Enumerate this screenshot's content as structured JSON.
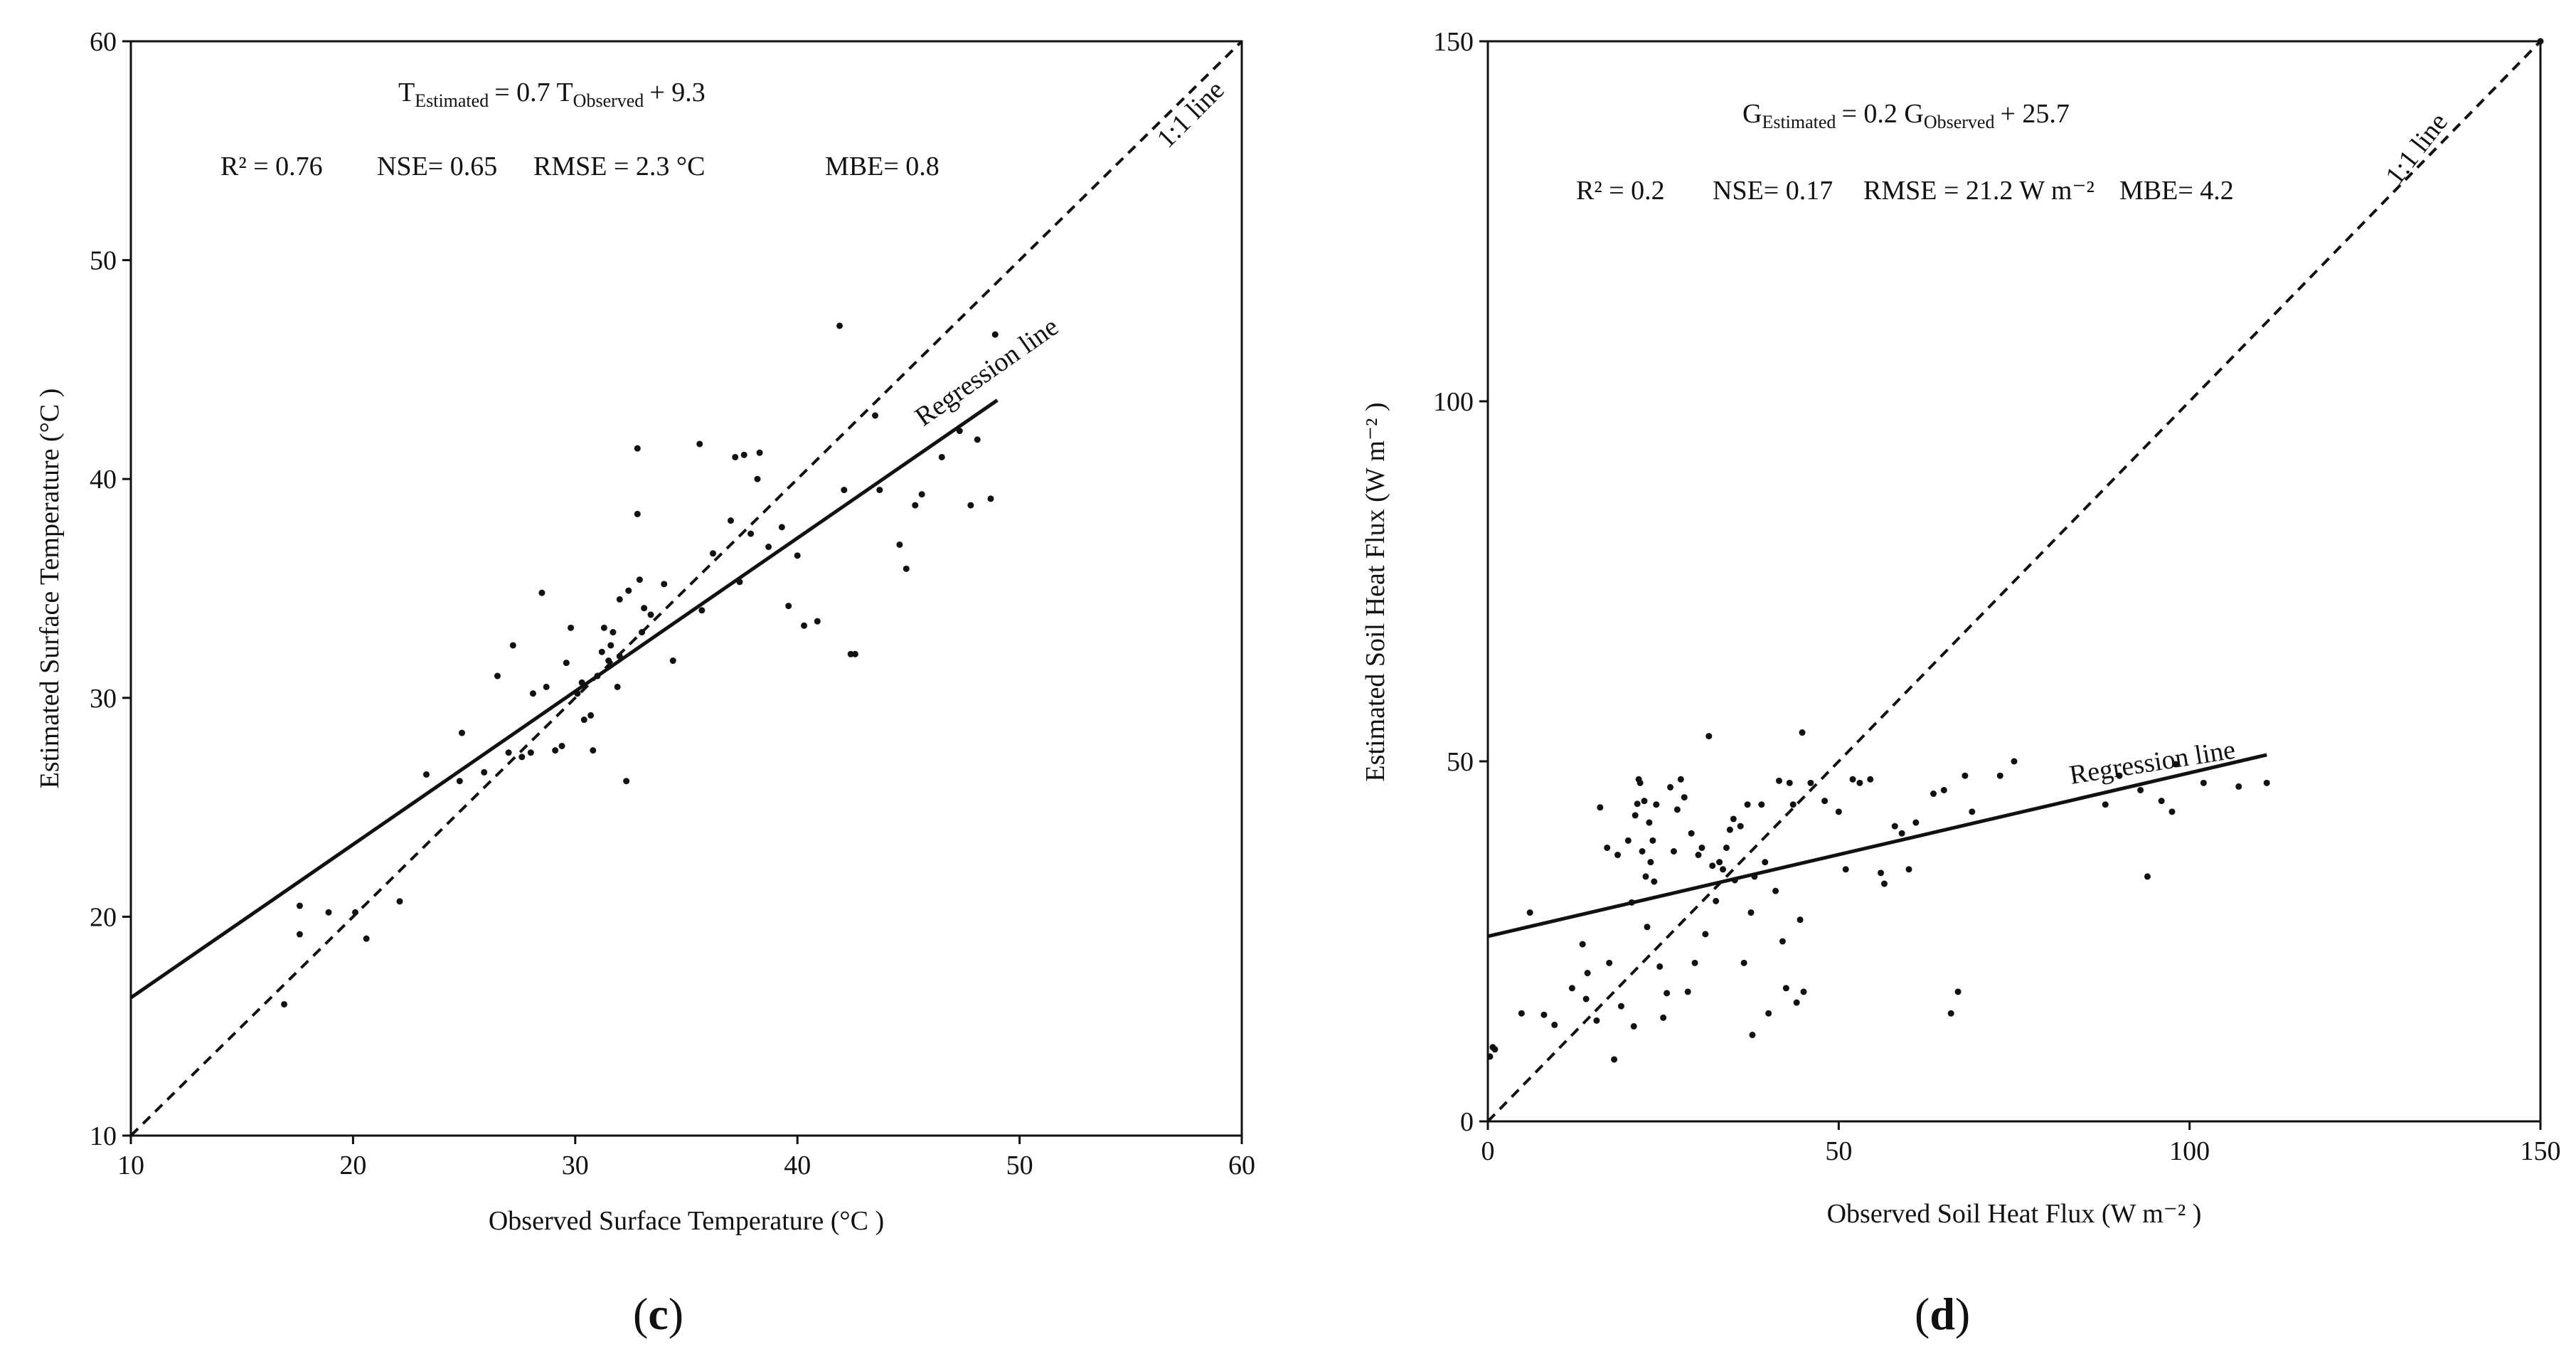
{
  "chart_data": [
    {
      "panel": "c",
      "panel_label_open": "(",
      "panel_label_letter": "c",
      "panel_label_close": ")",
      "type": "scatter",
      "xlabel": "Observed Surface Temperature (°C )",
      "ylabel": "Estimated Surface Temperature (°C )",
      "xlim": [
        10,
        60
      ],
      "ylim": [
        10,
        60
      ],
      "xticks": [
        10,
        20,
        30,
        40,
        50,
        60
      ],
      "yticks": [
        10,
        20,
        30,
        40,
        50,
        60
      ],
      "equation": {
        "lhs": "T",
        "lhs_sub": "Estimated",
        "mid": "= 0.7 T",
        "mid_sub": "Observed",
        "rhs": "+ 9.3"
      },
      "stats": {
        "r2": "R² = 0.76",
        "nse": "NSE= 0.65",
        "rmse": "RMSE = 2.3 °C",
        "mbe": "MBE= 0.8"
      },
      "one_to_one_label": "1:1 line",
      "regression_label": "Regression line",
      "one_to_one": [
        [
          10,
          10
        ],
        [
          60,
          60
        ]
      ],
      "regression": [
        [
          10,
          16.3
        ],
        [
          49,
          43.6
        ]
      ],
      "points": [
        [
          16.9,
          16.0
        ],
        [
          17.6,
          19.2
        ],
        [
          17.6,
          20.5
        ],
        [
          18.9,
          20.2
        ],
        [
          20.1,
          20.2
        ],
        [
          20.6,
          19.0
        ],
        [
          22.1,
          20.7
        ],
        [
          23.3,
          26.5
        ],
        [
          24.8,
          26.2
        ],
        [
          24.9,
          28.4
        ],
        [
          25.9,
          26.6
        ],
        [
          26.5,
          31.0
        ],
        [
          27.0,
          27.5
        ],
        [
          27.2,
          32.4
        ],
        [
          27.6,
          27.3
        ],
        [
          28.0,
          27.5
        ],
        [
          28.1,
          30.2
        ],
        [
          28.5,
          34.8
        ],
        [
          28.7,
          30.5
        ],
        [
          29.1,
          27.6
        ],
        [
          29.4,
          27.8
        ],
        [
          29.6,
          31.6
        ],
        [
          29.8,
          33.2
        ],
        [
          30.1,
          30.2
        ],
        [
          30.3,
          30.7
        ],
        [
          30.4,
          29.0
        ],
        [
          30.7,
          29.2
        ],
        [
          30.8,
          27.6
        ],
        [
          31.0,
          31.0
        ],
        [
          31.2,
          32.1
        ],
        [
          31.3,
          33.2
        ],
        [
          31.5,
          31.7
        ],
        [
          31.6,
          32.4
        ],
        [
          31.7,
          33.0
        ],
        [
          31.9,
          30.5
        ],
        [
          32.0,
          31.9
        ],
        [
          32.0,
          34.5
        ],
        [
          32.3,
          26.2
        ],
        [
          32.4,
          34.9
        ],
        [
          32.8,
          38.4
        ],
        [
          32.8,
          41.4
        ],
        [
          32.9,
          35.4
        ],
        [
          33.0,
          33.0
        ],
        [
          33.1,
          34.1
        ],
        [
          33.4,
          33.8
        ],
        [
          34.0,
          35.2
        ],
        [
          34.4,
          31.7
        ],
        [
          35.6,
          41.6
        ],
        [
          35.7,
          34.0
        ],
        [
          36.2,
          36.6
        ],
        [
          37.0,
          38.1
        ],
        [
          37.2,
          41.0
        ],
        [
          37.4,
          35.3
        ],
        [
          37.6,
          41.1
        ],
        [
          37.9,
          37.5
        ],
        [
          38.2,
          40.0
        ],
        [
          38.3,
          41.2
        ],
        [
          38.7,
          36.9
        ],
        [
          39.3,
          37.8
        ],
        [
          39.6,
          34.2
        ],
        [
          40.0,
          36.5
        ],
        [
          40.3,
          33.3
        ],
        [
          40.9,
          33.5
        ],
        [
          41.9,
          47.0
        ],
        [
          42.1,
          39.5
        ],
        [
          42.4,
          32.0
        ],
        [
          42.6,
          32.0
        ],
        [
          43.5,
          42.9
        ],
        [
          43.7,
          39.5
        ],
        [
          44.6,
          37.0
        ],
        [
          44.9,
          35.9
        ],
        [
          45.3,
          38.8
        ],
        [
          45.6,
          39.3
        ],
        [
          46.5,
          41.0
        ],
        [
          47.3,
          42.2
        ],
        [
          47.8,
          38.8
        ],
        [
          48.1,
          41.8
        ],
        [
          48.7,
          39.1
        ],
        [
          48.9,
          46.6
        ]
      ]
    },
    {
      "panel": "d",
      "panel_label_open": "(",
      "panel_label_letter": "d",
      "panel_label_close": ")",
      "type": "scatter",
      "xlabel": "Observed Soil Heat Flux (W m⁻² )",
      "ylabel": "Estimated Soil Heat Flux (W m⁻² )",
      "xlim": [
        0,
        150
      ],
      "ylim": [
        0,
        150
      ],
      "xticks": [
        0,
        50,
        100,
        150
      ],
      "yticks": [
        0,
        50,
        100,
        150
      ],
      "equation": {
        "lhs": "G",
        "lhs_sub": "Estimated",
        "mid": "= 0.2 G",
        "mid_sub": "Observed",
        "rhs": "+ 25.7"
      },
      "stats": {
        "r2": "R² = 0.2",
        "nse": "NSE= 0.17",
        "rmse": "RMSE = 21.2 W m⁻²",
        "mbe": "MBE= 4.2"
      },
      "one_to_one_label": "1:1 line",
      "regression_label": "Regression line",
      "one_to_one": [
        [
          0,
          0
        ],
        [
          150,
          150
        ]
      ],
      "regression": [
        [
          0,
          25.7
        ],
        [
          111,
          50.9
        ]
      ],
      "points": [
        [
          0.3,
          9.0
        ],
        [
          0.7,
          10.3
        ],
        [
          1.0,
          10.0
        ],
        [
          4.8,
          15.0
        ],
        [
          6.0,
          29.0
        ],
        [
          8.0,
          14.8
        ],
        [
          9.5,
          13.4
        ],
        [
          12.0,
          18.5
        ],
        [
          13.5,
          24.6
        ],
        [
          14.0,
          17.0
        ],
        [
          14.2,
          20.6
        ],
        [
          15.5,
          14.0
        ],
        [
          16.0,
          43.6
        ],
        [
          17.0,
          38.0
        ],
        [
          17.3,
          22.0
        ],
        [
          18.0,
          8.6
        ],
        [
          18.5,
          37.0
        ],
        [
          19.0,
          16.0
        ],
        [
          20.0,
          39.0
        ],
        [
          20.5,
          30.4
        ],
        [
          20.8,
          13.2
        ],
        [
          21.0,
          42.5
        ],
        [
          21.3,
          44.1
        ],
        [
          21.5,
          47.5
        ],
        [
          21.7,
          47.0
        ],
        [
          22.0,
          37.5
        ],
        [
          22.3,
          44.5
        ],
        [
          22.5,
          34.0
        ],
        [
          22.7,
          27.0
        ],
        [
          23.0,
          41.5
        ],
        [
          23.2,
          36.0
        ],
        [
          23.5,
          39.0
        ],
        [
          23.7,
          33.3
        ],
        [
          24.0,
          44.0
        ],
        [
          24.5,
          21.5
        ],
        [
          25.0,
          14.4
        ],
        [
          25.5,
          17.8
        ],
        [
          26.0,
          46.4
        ],
        [
          26.5,
          37.5
        ],
        [
          27.0,
          43.3
        ],
        [
          27.5,
          47.5
        ],
        [
          28.0,
          45.0
        ],
        [
          28.5,
          18.0
        ],
        [
          29.0,
          40.0
        ],
        [
          29.5,
          22.0
        ],
        [
          30.0,
          37.0
        ],
        [
          30.5,
          38.0
        ],
        [
          31.0,
          26.0
        ],
        [
          31.5,
          53.5
        ],
        [
          32.0,
          35.5
        ],
        [
          32.5,
          30.6
        ],
        [
          33.0,
          36.0
        ],
        [
          33.5,
          35.0
        ],
        [
          34.0,
          38.0
        ],
        [
          34.5,
          40.5
        ],
        [
          35.0,
          42.0
        ],
        [
          35.2,
          33.5
        ],
        [
          36.0,
          41.0
        ],
        [
          36.5,
          22.0
        ],
        [
          37.0,
          44.0
        ],
        [
          37.5,
          29.0
        ],
        [
          37.7,
          12.0
        ],
        [
          38.0,
          34.0
        ],
        [
          39.0,
          44.0
        ],
        [
          39.5,
          36.0
        ],
        [
          40.0,
          15.0
        ],
        [
          41.0,
          32.0
        ],
        [
          41.5,
          47.3
        ],
        [
          42.0,
          25.0
        ],
        [
          42.5,
          18.5
        ],
        [
          43.0,
          47.0
        ],
        [
          43.5,
          44.0
        ],
        [
          44.0,
          16.5
        ],
        [
          44.5,
          28.0
        ],
        [
          44.8,
          54.0
        ],
        [
          45.0,
          18.0
        ],
        [
          46.0,
          47.0
        ],
        [
          48.0,
          44.5
        ],
        [
          50.0,
          43.0
        ],
        [
          51.0,
          35.0
        ],
        [
          52.0,
          47.5
        ],
        [
          53.0,
          47.0
        ],
        [
          54.5,
          47.5
        ],
        [
          56.0,
          34.5
        ],
        [
          56.5,
          33.0
        ],
        [
          58.0,
          41.0
        ],
        [
          59.0,
          40.0
        ],
        [
          60.0,
          35.0
        ],
        [
          61.0,
          41.5
        ],
        [
          63.5,
          45.5
        ],
        [
          65.0,
          46.0
        ],
        [
          66.0,
          15.0
        ],
        [
          67.0,
          18.0
        ],
        [
          68.0,
          48.0
        ],
        [
          69.0,
          43.0
        ],
        [
          73.0,
          48.0
        ],
        [
          75.0,
          50.0
        ],
        [
          88.0,
          44.0
        ],
        [
          90.0,
          48.0
        ],
        [
          93.0,
          46.0
        ],
        [
          94.0,
          34.0
        ],
        [
          96.0,
          44.5
        ],
        [
          97.5,
          43.0
        ],
        [
          98.0,
          49.6
        ],
        [
          102.0,
          47.0
        ],
        [
          107.0,
          46.5
        ],
        [
          111.0,
          47.0
        ],
        [
          150.0,
          150.0
        ]
      ]
    }
  ]
}
